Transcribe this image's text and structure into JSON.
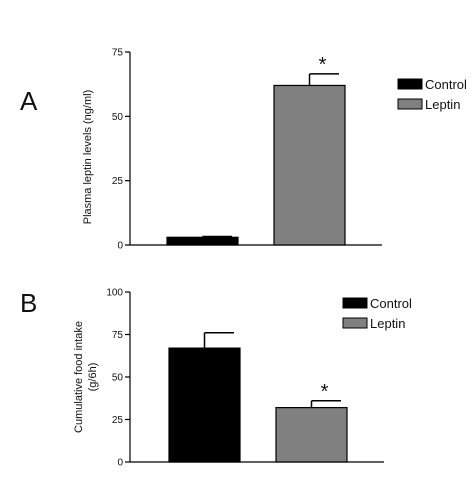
{
  "chart_data": [
    {
      "panel": "A",
      "type": "bar",
      "categories": [
        "Control",
        "Leptin"
      ],
      "values": [
        3,
        62
      ],
      "errors": [
        0.3,
        4.5
      ],
      "significance": [
        "",
        "*"
      ],
      "ylabel": "Plasma leptin levels (ng/ml)",
      "ylim": [
        0,
        75
      ],
      "yticks": [
        "0",
        "25",
        "50",
        "75"
      ],
      "ytick_values": [
        0,
        25,
        50,
        75
      ],
      "legend": {
        "position": "top-right",
        "entries": [
          {
            "label": "Control",
            "color": "#000000"
          },
          {
            "label": "Leptin",
            "color": "#808080"
          }
        ]
      },
      "colors": [
        "#000000",
        "#808080"
      ]
    },
    {
      "panel": "B",
      "type": "bar",
      "categories": [
        "Control",
        "Leptin"
      ],
      "values": [
        67,
        32
      ],
      "errors": [
        9,
        4
      ],
      "significance": [
        "",
        "*"
      ],
      "ylabel_lines": [
        "Cumulative food intake",
        "(g/6h)"
      ],
      "ylim": [
        0,
        100
      ],
      "yticks": [
        "0",
        "25",
        "50",
        "75",
        "100"
      ],
      "ytick_values": [
        0,
        25,
        50,
        75,
        100
      ],
      "legend": {
        "position": "top-right",
        "entries": [
          {
            "label": "Control",
            "color": "#000000"
          },
          {
            "label": "Leptin",
            "color": "#808080"
          }
        ]
      },
      "colors": [
        "#000000",
        "#808080"
      ]
    }
  ]
}
